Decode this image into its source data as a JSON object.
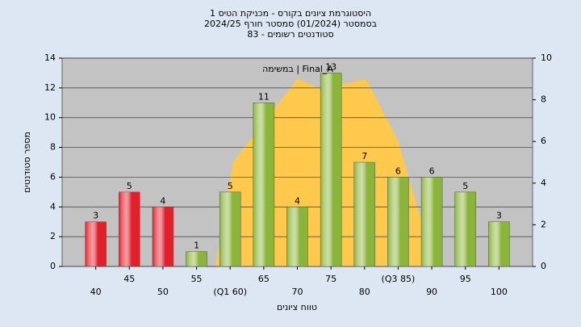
{
  "chart_data": {
    "type": "bar",
    "title": [
      "היסטוגרמת ציונים בקורס - מכניקת הטיס 1",
      "בסמסטר  (01/2024)  סמסטר חורף 2024/25",
      "סטודנטים רשומים - 83"
    ],
    "annotation": "במשימה  |  Final_A",
    "xlabel": "טווח ציונים",
    "ylabel": "מספר סטודנטים",
    "x": [
      40,
      45,
      50,
      55,
      60,
      65,
      70,
      75,
      80,
      85,
      90,
      95,
      100
    ],
    "values": [
      3,
      5,
      4,
      1,
      5,
      11,
      4,
      13,
      7,
      6,
      6,
      5,
      3
    ],
    "colors": [
      "#e0202c",
      "#e0202c",
      "#e0202c",
      "#8bb53a",
      "#8bb53a",
      "#8bb53a",
      "#8bb53a",
      "#8bb53a",
      "#8bb53a",
      "#8bb53a",
      "#8bb53a",
      "#8bb53a",
      "#8bb53a"
    ],
    "xlim": [
      35,
      105
    ],
    "xticks": [
      40,
      45,
      50,
      55,
      {
        "value": 60,
        "label": "(Q1 60)"
      },
      65,
      70,
      75,
      80,
      {
        "value": 85,
        "label": "(Q3 85)"
      },
      90,
      95,
      100
    ],
    "ylim": [
      0,
      14
    ],
    "yticks": [
      0,
      2,
      4,
      6,
      8,
      10,
      12,
      14
    ],
    "y2lim": [
      0,
      10
    ],
    "y2ticks": [
      0,
      2,
      4,
      6,
      8,
      10
    ],
    "area": {
      "axis": "y2",
      "color": "#ffc94d",
      "x": [
        57.8,
        60.4,
        65.2,
        70,
        73.6,
        80.2,
        85,
        88.6
      ],
      "values": [
        0,
        5.0,
        7.0,
        9.0,
        8.5,
        9.0,
        6.0,
        2.0
      ]
    },
    "grid": true
  }
}
